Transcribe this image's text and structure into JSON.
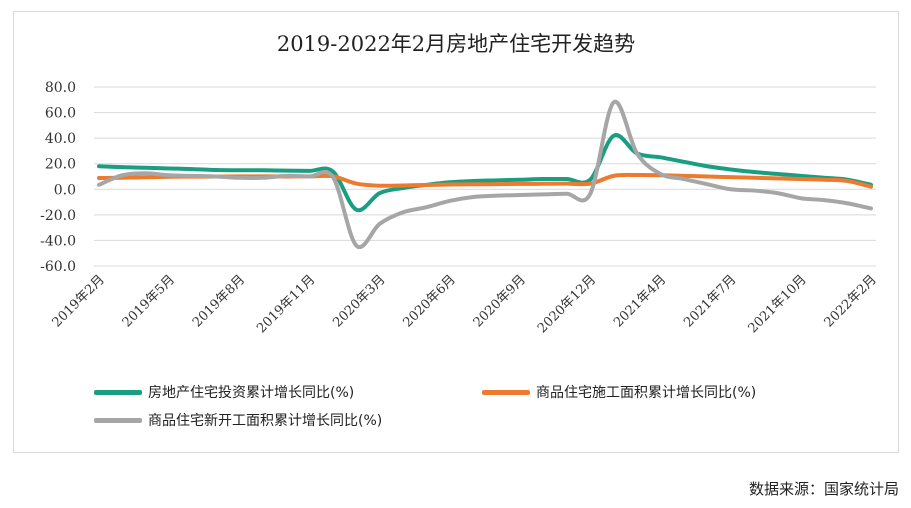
{
  "chart_data": {
    "type": "line",
    "title": "2019-2022年2月房地产住宅开发趋势",
    "categories": [
      "2019年2月",
      "2019年3月",
      "2019年4月",
      "2019年5月",
      "2019年6月",
      "2019年7月",
      "2019年8月",
      "2019年9月",
      "2019年10月",
      "2019年11月",
      "2019年12月",
      "2020年2月",
      "2020年3月",
      "2020年4月",
      "2020年5月",
      "2020年6月",
      "2020年7月",
      "2020年8月",
      "2020年9月",
      "2020年10月",
      "2020年11月",
      "2020年12月",
      "2021年2月",
      "2021年3月",
      "2021年4月",
      "2021年5月",
      "2021年6月",
      "2021年7月",
      "2021年8月",
      "2021年9月",
      "2021年10月",
      "2021年11月",
      "2021年12月",
      "2022年2月"
    ],
    "x_tick_labels": [
      "2019年2月",
      "2019年5月",
      "2019年8月",
      "2019年11月",
      "2020年3月",
      "2020年6月",
      "2020年9月",
      "2020年12月",
      "2021年4月",
      "2021年7月",
      "2021年10月",
      "2022年2月"
    ],
    "x_tick_indices": [
      0,
      3,
      6,
      9,
      12,
      15,
      18,
      21,
      24,
      27,
      30,
      33
    ],
    "ylim": [
      -60,
      80
    ],
    "y_ticks": [
      -60,
      -40,
      -20,
      0,
      20,
      40,
      60,
      80
    ],
    "y_tick_labels": [
      "-60.0",
      "-40.0",
      "-20.0",
      "0.0",
      "20.0",
      "40.0",
      "60.0",
      "80.0"
    ],
    "grid": "horizontal",
    "legend_position": "bottom",
    "series": [
      {
        "name": "房地产住宅投资累计增长同比(%)",
        "color": "#1a9e82",
        "values": [
          18.0,
          17.3,
          16.8,
          16.3,
          15.8,
          15.1,
          14.9,
          14.9,
          14.6,
          14.4,
          13.9,
          -16.0,
          -3.0,
          1.0,
          3.5,
          5.5,
          6.5,
          7.0,
          7.5,
          8.0,
          8.0,
          7.6,
          41.9,
          28.0,
          25.0,
          21.5,
          18.0,
          15.5,
          13.5,
          12.0,
          10.5,
          9.0,
          7.5,
          3.5
        ]
      },
      {
        "name": "商品住宅施工面积累计增长同比(%)",
        "color": "#ee7a30",
        "values": [
          8.8,
          9.0,
          9.4,
          9.8,
          9.9,
          10.0,
          10.1,
          10.1,
          10.0,
          10.1,
          10.1,
          4.5,
          2.8,
          3.0,
          3.4,
          3.7,
          3.9,
          4.0,
          4.2,
          4.3,
          4.4,
          4.4,
          10.5,
          11.2,
          11.0,
          10.5,
          10.0,
          9.5,
          9.0,
          8.5,
          8.0,
          7.5,
          6.5,
          2.0
        ]
      },
      {
        "name": "商品住宅新开工面积累计增长同比(%)",
        "color": "#a6a6a6",
        "values": [
          3.5,
          11.0,
          12.5,
          11.0,
          10.5,
          10.0,
          9.0,
          9.0,
          10.5,
          10.0,
          9.5,
          -44.0,
          -27.0,
          -18.0,
          -14.0,
          -9.0,
          -6.0,
          -5.0,
          -4.5,
          -4.0,
          -3.5,
          -3.5,
          68.0,
          28.0,
          12.0,
          8.0,
          4.0,
          0.0,
          -1.0,
          -3.0,
          -7.0,
          -8.5,
          -11.0,
          -15.0
        ]
      }
    ]
  },
  "source": "数据来源：国家统计局"
}
